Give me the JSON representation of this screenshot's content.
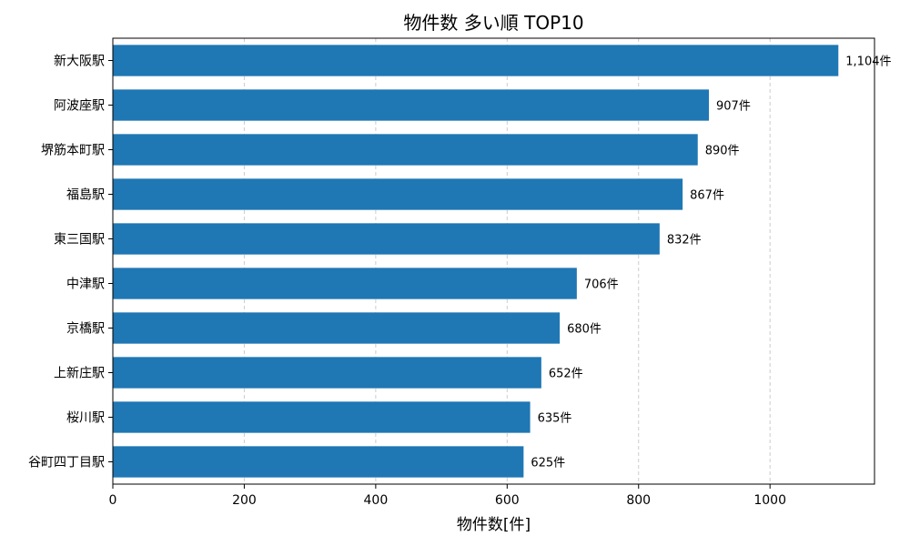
{
  "chart_data": {
    "type": "bar",
    "orientation": "horizontal",
    "title": "物件数 多い順 TOP10",
    "xlabel": "物件数[件]",
    "ylabel": "",
    "categories": [
      "新大阪駅",
      "阿波座駅",
      "堺筋本町駅",
      "福島駅",
      "東三国駅",
      "中津駅",
      "京橋駅",
      "上新庄駅",
      "桜川駅",
      "谷町四丁目駅"
    ],
    "values": [
      1104,
      907,
      890,
      867,
      832,
      706,
      680,
      652,
      635,
      625
    ],
    "data_labels": [
      "1,104件",
      "907件",
      "890件",
      "867件",
      "832件",
      "706件",
      "680件",
      "652件",
      "635件",
      "625件"
    ],
    "x_ticks": [
      0,
      200,
      400,
      600,
      800,
      1000
    ],
    "xlim": [
      0,
      1159
    ],
    "grid": {
      "x": true,
      "y": false,
      "style": "dashed"
    },
    "bar_color": "#1f77b4"
  }
}
